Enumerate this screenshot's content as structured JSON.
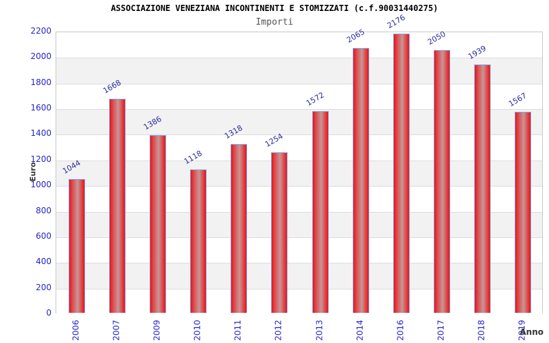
{
  "header": {
    "title": "ASSOCIAZIONE VENEZIANA INCONTINENTI E STOMIZZATI (c.f.90031440275)",
    "subtitle": "Importi"
  },
  "chart_data": {
    "type": "bar",
    "title": "ASSOCIAZIONE VENEZIANA INCONTINENTI E STOMIZZATI (c.f.90031440275)",
    "subtitle": "Importi",
    "xlabel": "Anno",
    "ylabel": "Euro",
    "categories": [
      "2006",
      "2007",
      "2009",
      "2010",
      "2011",
      "2012",
      "2013",
      "2014",
      "2016",
      "2017",
      "2018",
      "2019"
    ],
    "values": [
      1044,
      1668,
      1386,
      1118,
      1318,
      1254,
      1572,
      2065,
      2176,
      2050,
      1939,
      1567
    ],
    "ylim": [
      0,
      2200
    ],
    "ytick_step": 200,
    "yticks": [
      0,
      200,
      400,
      600,
      800,
      1000,
      1200,
      1400,
      1600,
      1800,
      2000,
      2200
    ],
    "grid": true,
    "legend_position": "none",
    "bands_alternating": true
  },
  "colors": {
    "bar_red": "#e81417",
    "bar_red_mid": "#e04547",
    "bar_light_center": "#c69697",
    "bar_border": "#7da6e4",
    "value_label": "#2a2a9e",
    "tick_label": "#2424cc",
    "band_gray": "#f2f2f2",
    "band_white": "#ffffff",
    "grid_line": "#dcdcdc",
    "plot_border": "#c9c9c9",
    "title_color": "#000000",
    "subtitle_color": "#555555",
    "axis_title_color": "#333333"
  }
}
